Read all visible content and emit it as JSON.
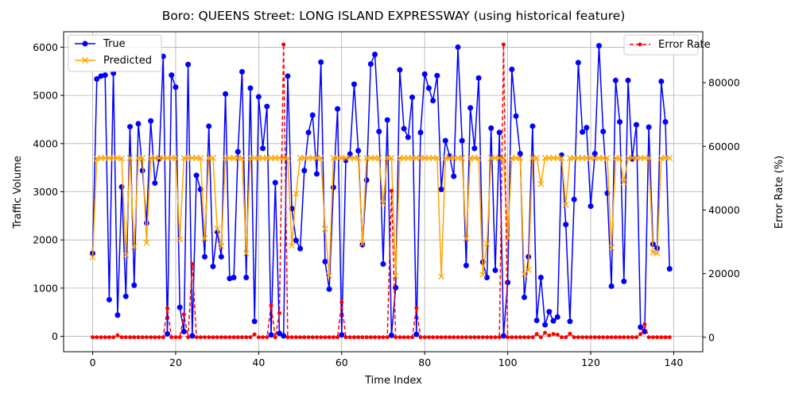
{
  "chart_data": {
    "type": "line",
    "title": "Boro: QUEENS Street: LONG ISLAND EXPRESSWAY (using historical feature)",
    "xlabel": "Time Index",
    "ylabel": "Traffic Volume",
    "y2label": "Error Rate (%)",
    "xlim": [
      -7,
      147
    ],
    "ylim": [
      -320,
      6320
    ],
    "y2lim": [
      -4550,
      96000
    ],
    "xticks": [
      0,
      20,
      40,
      60,
      80,
      100,
      120,
      140
    ],
    "yticks": [
      0,
      1000,
      2000,
      3000,
      4000,
      5000,
      6000
    ],
    "y2ticks": [
      0,
      20000,
      40000,
      60000,
      80000
    ],
    "y2tick_labels": [
      "0",
      "20000",
      "40000",
      "60000",
      "80000"
    ],
    "grid": true,
    "legend_left": {
      "placement": "upper-left",
      "entries": [
        "True",
        "Predicted"
      ]
    },
    "legend_right": {
      "placement": "upper-right",
      "entries": [
        "Error Rate"
      ]
    },
    "series": [
      {
        "name": "True",
        "axis": "left",
        "color": "#0000ff",
        "marker": "circle",
        "values": [
          1720,
          5340,
          5400,
          5420,
          760,
          5460,
          440,
          3100,
          830,
          4350,
          1060,
          4410,
          3440,
          2350,
          4470,
          3180,
          3680,
          5810,
          50,
          5420,
          5170,
          600,
          100,
          5640,
          10,
          3340,
          3050,
          1650,
          4360,
          1450,
          2170,
          1650,
          5030,
          1200,
          1220,
          3830,
          5490,
          1220,
          5150,
          310,
          4970,
          3900,
          4770,
          30,
          3190,
          60,
          10,
          5400,
          2650,
          1990,
          1820,
          3440,
          4230,
          4590,
          3370,
          5690,
          1550,
          980,
          3090,
          4720,
          30,
          3650,
          3780,
          5230,
          3850,
          1900,
          3240,
          5650,
          5850,
          4250,
          1500,
          4490,
          20,
          1010,
          5530,
          4310,
          4130,
          4960,
          40,
          4230,
          5440,
          5150,
          4890,
          5410,
          3050,
          4060,
          3740,
          3320,
          6000,
          4060,
          1470,
          4740,
          3900,
          5360,
          1540,
          1220,
          4320,
          1370,
          4230,
          10,
          1120,
          5540,
          4570,
          3790,
          810,
          1650,
          4360,
          330,
          1220,
          240,
          510,
          320,
          400,
          3760,
          2320,
          310,
          2840,
          5680,
          4240,
          4330,
          2700,
          3790,
          6030,
          4250,
          2970,
          1040,
          5310,
          4450,
          1140,
          5310,
          3680,
          4390,
          190,
          100,
          4340,
          1910,
          1830,
          5290,
          4450,
          1400
        ]
      },
      {
        "name": "Predicted",
        "axis": "left",
        "color": "#ffa500",
        "marker": "x",
        "values": [
          1640,
          3690,
          3700,
          3700,
          3700,
          3700,
          3700,
          3690,
          1690,
          3700,
          1860,
          3700,
          3700,
          1940,
          3700,
          3700,
          3700,
          3700,
          3700,
          3700,
          3700,
          2010,
          3700,
          3700,
          3700,
          3700,
          3700,
          2030,
          3700,
          3700,
          2230,
          1870,
          3700,
          3700,
          3700,
          3700,
          3700,
          1720,
          3700,
          3700,
          3700,
          3700,
          3700,
          3700,
          3700,
          3700,
          3700,
          3700,
          1880,
          2960,
          3700,
          3700,
          3700,
          3700,
          3700,
          3700,
          2230,
          1260,
          3700,
          3700,
          3700,
          3700,
          3700,
          3700,
          3700,
          1920,
          3700,
          3700,
          3700,
          3700,
          2760,
          3700,
          3700,
          1250,
          3700,
          3700,
          3700,
          3700,
          3700,
          3700,
          3700,
          3700,
          3700,
          3700,
          1240,
          3700,
          3700,
          3700,
          3700,
          3700,
          2030,
          3700,
          3700,
          3700,
          1280,
          1920,
          3700,
          3700,
          3700,
          3700,
          2040,
          3700,
          3700,
          3700,
          1290,
          1380,
          3700,
          3700,
          3160,
          3700,
          3700,
          3700,
          3700,
          3700,
          2730,
          3700,
          3700,
          3700,
          3700,
          3700,
          3700,
          3700,
          3700,
          3700,
          3700,
          1840,
          3700,
          3700,
          3200,
          3700,
          3700,
          3700,
          3700,
          3700,
          3700,
          1740,
          1720,
          3700,
          3700,
          3700
        ]
      },
      {
        "name": "Error Rate",
        "axis": "right",
        "color": "#ff0000",
        "marker": "circle",
        "linestyle": "dashed",
        "values": [
          0,
          0,
          0,
          0,
          0,
          0,
          600,
          0,
          0,
          0,
          0,
          0,
          0,
          0,
          0,
          0,
          0,
          0,
          9100,
          0,
          0,
          0,
          7200,
          0,
          23000,
          0,
          0,
          0,
          0,
          0,
          0,
          0,
          0,
          0,
          0,
          0,
          0,
          0,
          0,
          900,
          0,
          0,
          0,
          10000,
          0,
          7600,
          92000,
          0,
          0,
          0,
          0,
          0,
          0,
          0,
          0,
          0,
          0,
          0,
          0,
          0,
          11000,
          0,
          0,
          0,
          0,
          0,
          0,
          0,
          0,
          0,
          0,
          0,
          46000,
          0,
          0,
          0,
          0,
          0,
          9200,
          0,
          0,
          0,
          0,
          0,
          0,
          0,
          0,
          0,
          0,
          0,
          0,
          0,
          0,
          0,
          0,
          0,
          0,
          0,
          0,
          92000,
          0,
          0,
          0,
          0,
          0,
          0,
          0,
          1000,
          0,
          1400,
          600,
          1000,
          800,
          0,
          0,
          1100,
          0,
          0,
          0,
          0,
          0,
          0,
          0,
          0,
          0,
          0,
          0,
          0,
          0,
          0,
          0,
          0,
          1000,
          4100,
          0,
          0,
          0,
          0,
          0,
          0
        ]
      }
    ]
  }
}
